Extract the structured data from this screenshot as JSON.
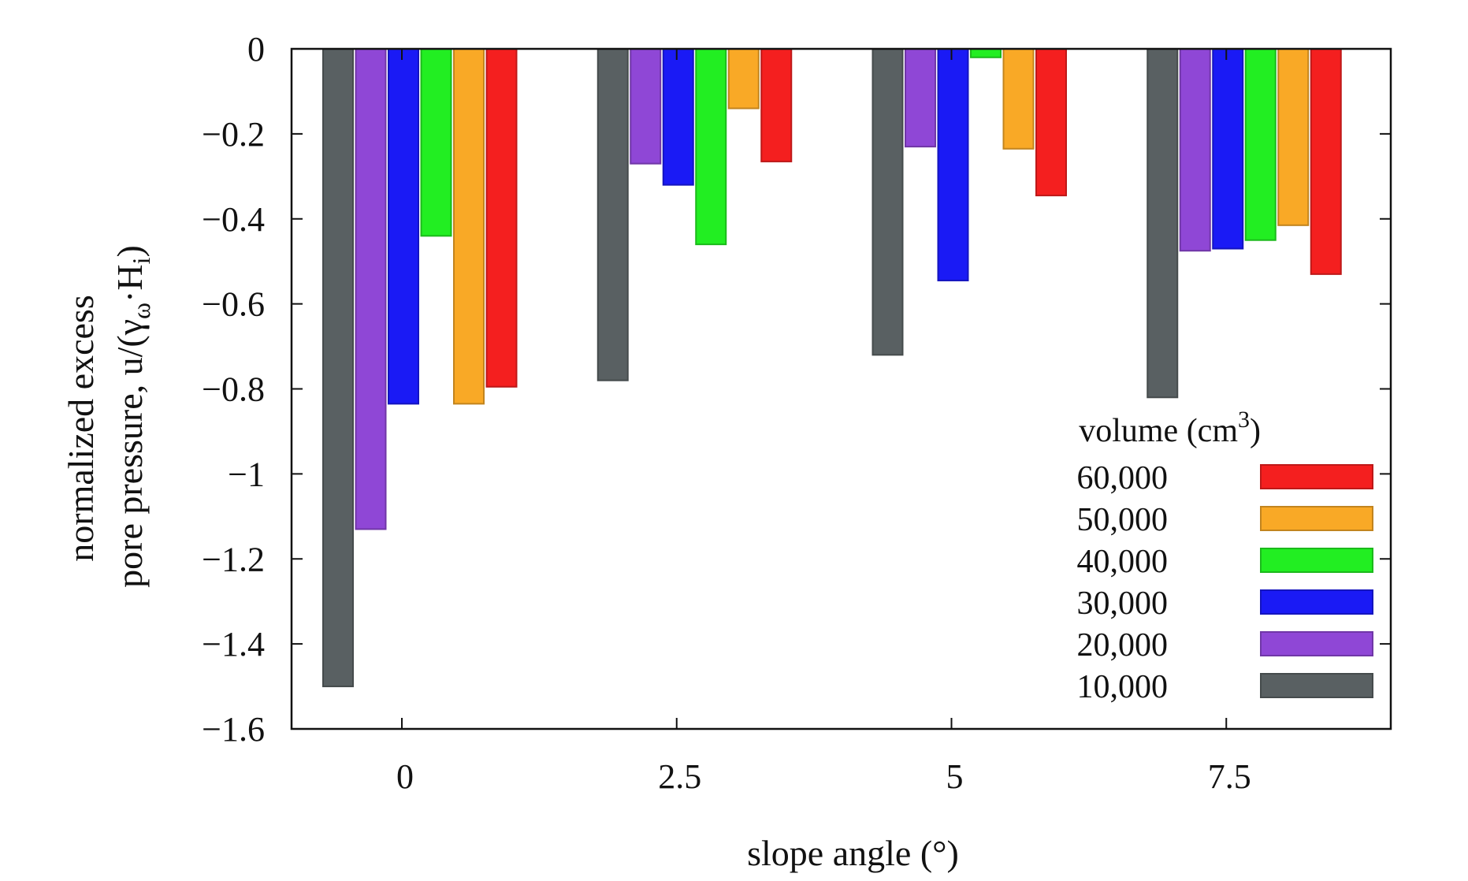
{
  "chart_data": {
    "type": "bar",
    "xlabel": "slope angle (°)",
    "ylabel_line1": "normalized excess",
    "ylabel_line2": "pore pressure, u/(γ",
    "ylabel_sub_omega": "ω",
    "ylabel_mid": "·H",
    "ylabel_sub_i": "i",
    "ylabel_close": ")",
    "categories": [
      "0",
      "2.5",
      "5",
      "7.5"
    ],
    "ylim": [
      -1.6,
      0
    ],
    "yticks": [
      0,
      -0.2,
      -0.4,
      -0.6,
      -0.8,
      -1,
      -1.2,
      -1.4,
      -1.6
    ],
    "ytick_labels": [
      "0",
      "−0.2",
      "−0.4",
      "−0.6",
      "−0.8",
      "−1",
      "−1.2",
      "−1.4",
      "−1.6"
    ],
    "grid": false,
    "legend": {
      "title_prefix": "volume (cm",
      "title_sup": "3",
      "title_suffix": ")",
      "placement": "bottom-right"
    },
    "series": [
      {
        "name": "10,000",
        "color": "#596062",
        "values": [
          -1.5,
          -0.78,
          -0.72,
          -0.82
        ]
      },
      {
        "name": "20,000",
        "color": "#8f47d6",
        "values": [
          -1.13,
          -0.27,
          -0.23,
          -0.475
        ]
      },
      {
        "name": "30,000",
        "color": "#1a1af5",
        "values": [
          -0.835,
          -0.32,
          -0.545,
          -0.47
        ]
      },
      {
        "name": "40,000",
        "color": "#22ee22",
        "values": [
          -0.44,
          -0.46,
          -0.02,
          -0.45
        ]
      },
      {
        "name": "50,000",
        "color": "#f9a926",
        "values": [
          -0.835,
          -0.14,
          -0.235,
          -0.415
        ]
      },
      {
        "name": "60,000",
        "color": "#f41f1f",
        "values": [
          -0.795,
          -0.265,
          -0.345,
          -0.53
        ]
      }
    ]
  }
}
